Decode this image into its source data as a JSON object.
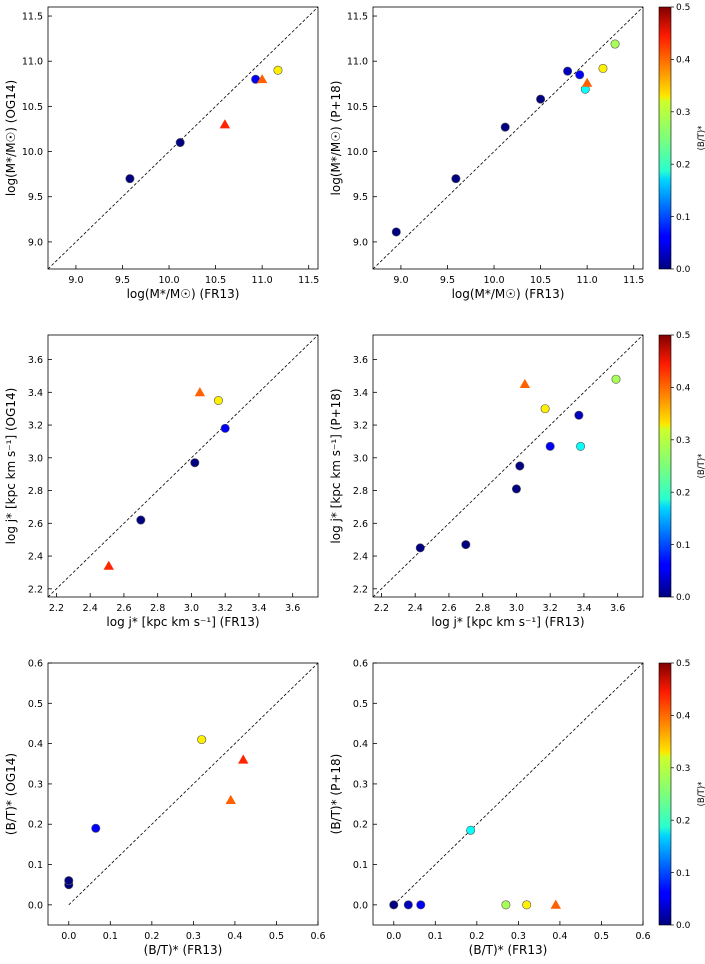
{
  "colorbar": {
    "label": "(B/T)*",
    "range": [
      0,
      0.5
    ],
    "ticks": [
      "0.0",
      "0.1",
      "0.2",
      "0.3",
      "0.4",
      "0.5"
    ]
  },
  "chart_data": [
    {
      "id": "mass-og14",
      "type": "scatter",
      "xlabel": "log(M*/M☉)  (FR13)",
      "ylabel": "log(M*/M☉)  (OG14)",
      "xlim": [
        8.7,
        11.6
      ],
      "ylim": [
        8.7,
        11.6
      ],
      "xticks": [
        9.0,
        9.5,
        10.0,
        10.5,
        11.0,
        11.5
      ],
      "yticks": [
        9.0,
        9.5,
        10.0,
        10.5,
        11.0,
        11.5
      ],
      "tick_decimals": 1,
      "points": [
        {
          "x": 9.58,
          "y": 9.7,
          "c": 0.0,
          "m": "circle"
        },
        {
          "x": 10.12,
          "y": 10.1,
          "c": 0.0,
          "m": "circle"
        },
        {
          "x": 10.93,
          "y": 10.8,
          "c": 0.06,
          "m": "circle"
        },
        {
          "x": 11.17,
          "y": 10.9,
          "c": 0.32,
          "m": "circle"
        },
        {
          "x": 10.6,
          "y": 10.3,
          "c": 0.42,
          "m": "triangle"
        },
        {
          "x": 11.0,
          "y": 10.8,
          "c": 0.39,
          "m": "triangle"
        }
      ]
    },
    {
      "id": "mass-p18",
      "type": "scatter",
      "xlabel": "log(M*/M☉)  (FR13)",
      "ylabel": "log(M*/M☉)  (P+18)",
      "xlim": [
        8.7,
        11.6
      ],
      "ylim": [
        8.7,
        11.6
      ],
      "xticks": [
        9.0,
        9.5,
        10.0,
        10.5,
        11.0,
        11.5
      ],
      "yticks": [
        9.0,
        9.5,
        10.0,
        10.5,
        11.0,
        11.5
      ],
      "tick_decimals": 1,
      "points": [
        {
          "x": 8.95,
          "y": 9.11,
          "c": 0.0,
          "m": "circle"
        },
        {
          "x": 9.59,
          "y": 9.7,
          "c": 0.0,
          "m": "circle"
        },
        {
          "x": 10.12,
          "y": 10.27,
          "c": 0.0,
          "m": "circle"
        },
        {
          "x": 10.5,
          "y": 10.58,
          "c": 0.0,
          "m": "circle"
        },
        {
          "x": 10.79,
          "y": 10.89,
          "c": 0.03,
          "m": "circle"
        },
        {
          "x": 10.92,
          "y": 10.85,
          "c": 0.06,
          "m": "circle"
        },
        {
          "x": 10.98,
          "y": 10.69,
          "c": 0.19,
          "m": "circle"
        },
        {
          "x": 11.17,
          "y": 10.92,
          "c": 0.32,
          "m": "circle"
        },
        {
          "x": 11.3,
          "y": 11.19,
          "c": 0.27,
          "m": "circle"
        },
        {
          "x": 11.0,
          "y": 10.76,
          "c": 0.39,
          "m": "triangle"
        }
      ]
    },
    {
      "id": "j-og14",
      "type": "scatter",
      "xlabel": "log j* [kpc km s⁻¹]  (FR13)",
      "ylabel": "log j* [kpc km s⁻¹]  (OG14)",
      "xlim": [
        2.15,
        3.75
      ],
      "ylim": [
        2.15,
        3.75
      ],
      "xticks": [
        2.2,
        2.4,
        2.6,
        2.8,
        3.0,
        3.2,
        3.4,
        3.6
      ],
      "yticks": [
        2.2,
        2.4,
        2.6,
        2.8,
        3.0,
        3.2,
        3.4,
        3.6
      ],
      "tick_decimals": 1,
      "points": [
        {
          "x": 2.7,
          "y": 2.62,
          "c": 0.0,
          "m": "circle"
        },
        {
          "x": 3.02,
          "y": 2.97,
          "c": 0.0,
          "m": "circle"
        },
        {
          "x": 3.2,
          "y": 3.18,
          "c": 0.06,
          "m": "circle"
        },
        {
          "x": 3.16,
          "y": 3.35,
          "c": 0.32,
          "m": "circle"
        },
        {
          "x": 2.51,
          "y": 2.34,
          "c": 0.42,
          "m": "triangle"
        },
        {
          "x": 3.05,
          "y": 3.4,
          "c": 0.39,
          "m": "triangle"
        }
      ]
    },
    {
      "id": "j-p18",
      "type": "scatter",
      "xlabel": "log j* [kpc km s⁻¹]  (FR13)",
      "ylabel": "log j* [kpc km s⁻¹]  (P+18)",
      "xlim": [
        2.15,
        3.75
      ],
      "ylim": [
        2.15,
        3.75
      ],
      "xticks": [
        2.2,
        2.4,
        2.6,
        2.8,
        3.0,
        3.2,
        3.4,
        3.6
      ],
      "yticks": [
        2.2,
        2.4,
        2.6,
        2.8,
        3.0,
        3.2,
        3.4,
        3.6
      ],
      "tick_decimals": 1,
      "points": [
        {
          "x": 2.43,
          "y": 2.45,
          "c": 0.0,
          "m": "circle"
        },
        {
          "x": 2.7,
          "y": 2.47,
          "c": 0.0,
          "m": "circle"
        },
        {
          "x": 3.0,
          "y": 2.81,
          "c": 0.0,
          "m": "circle"
        },
        {
          "x": 3.02,
          "y": 2.95,
          "c": 0.0,
          "m": "circle"
        },
        {
          "x": 3.2,
          "y": 3.07,
          "c": 0.06,
          "m": "circle"
        },
        {
          "x": 3.37,
          "y": 3.26,
          "c": 0.03,
          "m": "circle"
        },
        {
          "x": 3.38,
          "y": 3.07,
          "c": 0.19,
          "m": "circle"
        },
        {
          "x": 3.17,
          "y": 3.3,
          "c": 0.32,
          "m": "circle"
        },
        {
          "x": 3.59,
          "y": 3.48,
          "c": 0.27,
          "m": "circle"
        },
        {
          "x": 3.05,
          "y": 3.45,
          "c": 0.39,
          "m": "triangle"
        }
      ]
    },
    {
      "id": "bt-og14",
      "type": "scatter",
      "xlabel": "(B/T)*  (FR13)",
      "ylabel": "(B/T)*  (OG14)",
      "xlim": [
        -0.05,
        0.6
      ],
      "ylim": [
        -0.05,
        0.6
      ],
      "xticks": [
        0.0,
        0.1,
        0.2,
        0.3,
        0.4,
        0.5,
        0.6
      ],
      "yticks": [
        0.0,
        0.1,
        0.2,
        0.3,
        0.4,
        0.5,
        0.6
      ],
      "tick_decimals": 1,
      "points": [
        {
          "x": 0.0,
          "y": 0.05,
          "c": 0.0,
          "m": "circle"
        },
        {
          "x": 0.0,
          "y": 0.06,
          "c": 0.0,
          "m": "circle"
        },
        {
          "x": 0.065,
          "y": 0.19,
          "c": 0.06,
          "m": "circle"
        },
        {
          "x": 0.32,
          "y": 0.41,
          "c": 0.32,
          "m": "circle"
        },
        {
          "x": 0.42,
          "y": 0.36,
          "c": 0.42,
          "m": "triangle"
        },
        {
          "x": 0.39,
          "y": 0.26,
          "c": 0.39,
          "m": "triangle"
        }
      ]
    },
    {
      "id": "bt-p18",
      "type": "scatter",
      "xlabel": "(B/T)*  (FR13)",
      "ylabel": "(B/T)*  (P+18)",
      "xlim": [
        -0.05,
        0.6
      ],
      "ylim": [
        -0.05,
        0.6
      ],
      "xticks": [
        0.0,
        0.1,
        0.2,
        0.3,
        0.4,
        0.5,
        0.6
      ],
      "yticks": [
        0.0,
        0.1,
        0.2,
        0.3,
        0.4,
        0.5,
        0.6
      ],
      "tick_decimals": 1,
      "points": [
        {
          "x": 0.0,
          "y": 0.0,
          "c": 0.0,
          "m": "circle"
        },
        {
          "x": 0.035,
          "y": 0.0,
          "c": 0.03,
          "m": "circle"
        },
        {
          "x": 0.065,
          "y": 0.0,
          "c": 0.06,
          "m": "circle"
        },
        {
          "x": 0.185,
          "y": 0.185,
          "c": 0.19,
          "m": "circle"
        },
        {
          "x": 0.27,
          "y": 0.0,
          "c": 0.27,
          "m": "circle"
        },
        {
          "x": 0.32,
          "y": 0.0,
          "c": 0.32,
          "m": "circle"
        },
        {
          "x": 0.39,
          "y": 0.0,
          "c": 0.39,
          "m": "triangle"
        }
      ]
    }
  ]
}
